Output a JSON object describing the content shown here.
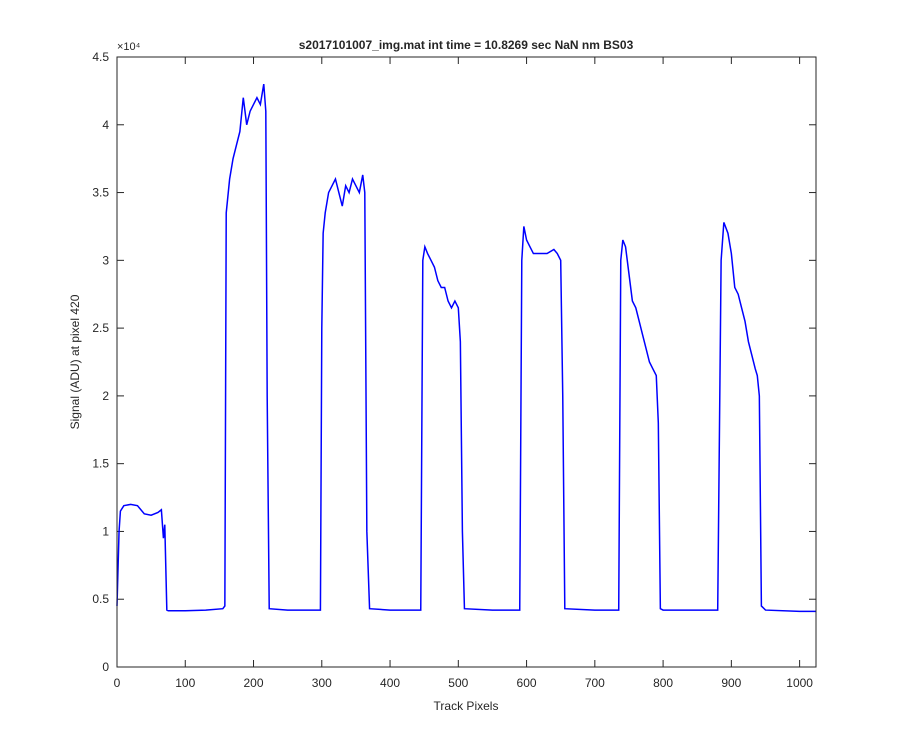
{
  "chart_data": {
    "type": "line",
    "title": "s2017101007_img.mat int time = 10.8269 sec  NaN nm BS03",
    "x_label": "Track Pixels",
    "y_label": "Signal (ADU) at pixel 420",
    "y_exponent_label": "×10⁴",
    "xlim": [
      0,
      1024
    ],
    "xticks": [
      0,
      100,
      200,
      300,
      400,
      500,
      600,
      700,
      800,
      900,
      1000
    ],
    "ylim": [
      0,
      4.5
    ],
    "yticks": [
      0,
      0.5,
      1,
      1.5,
      2,
      2.5,
      3,
      3.5,
      4,
      4.5
    ],
    "grid": false,
    "x": [
      0,
      3,
      5,
      10,
      20,
      30,
      40,
      50,
      60,
      65,
      68,
      70,
      73,
      75,
      100,
      130,
      155,
      158,
      160,
      165,
      170,
      175,
      180,
      185,
      190,
      195,
      200,
      205,
      210,
      215,
      218,
      220,
      223,
      250,
      298,
      300,
      302,
      305,
      310,
      315,
      320,
      325,
      330,
      335,
      340,
      345,
      350,
      355,
      360,
      363,
      366,
      370,
      400,
      445,
      448,
      451,
      455,
      460,
      465,
      470,
      475,
      480,
      485,
      490,
      495,
      500,
      503,
      506,
      509,
      550,
      590,
      593,
      596,
      600,
      605,
      610,
      620,
      630,
      640,
      645,
      650,
      653,
      656,
      700,
      735,
      738,
      741,
      745,
      750,
      755,
      760,
      765,
      770,
      775,
      780,
      785,
      790,
      793,
      796,
      800,
      840,
      880,
      885,
      889,
      895,
      900,
      905,
      910,
      915,
      920,
      925,
      930,
      935,
      938,
      941,
      944,
      950,
      1000,
      1024
    ],
    "series": [
      {
        "name": "signal",
        "color": "#0000ff",
        "values": [
          0.45,
          1.0,
          1.15,
          1.19,
          1.2,
          1.19,
          1.13,
          1.12,
          1.14,
          1.16,
          0.95,
          1.05,
          0.42,
          0.415,
          0.415,
          0.42,
          0.43,
          0.45,
          3.35,
          3.6,
          3.75,
          3.85,
          3.95,
          4.2,
          4.0,
          4.1,
          4.15,
          4.2,
          4.15,
          4.3,
          4.1,
          2.0,
          0.43,
          0.42,
          0.42,
          2.5,
          3.2,
          3.35,
          3.5,
          3.55,
          3.6,
          3.5,
          3.4,
          3.55,
          3.5,
          3.6,
          3.55,
          3.5,
          3.63,
          3.5,
          1.0,
          0.43,
          0.42,
          0.42,
          3.0,
          3.1,
          3.05,
          3.0,
          2.95,
          2.85,
          2.8,
          2.8,
          2.7,
          2.65,
          2.7,
          2.65,
          2.4,
          1.0,
          0.43,
          0.42,
          0.42,
          3.0,
          3.25,
          3.15,
          3.1,
          3.05,
          3.05,
          3.05,
          3.08,
          3.05,
          3.0,
          2.0,
          0.43,
          0.42,
          0.42,
          3.0,
          3.15,
          3.1,
          2.9,
          2.7,
          2.65,
          2.55,
          2.45,
          2.35,
          2.25,
          2.2,
          2.15,
          1.8,
          0.43,
          0.42,
          0.42,
          0.42,
          3.0,
          3.28,
          3.2,
          3.05,
          2.8,
          2.75,
          2.65,
          2.55,
          2.4,
          2.3,
          2.2,
          2.15,
          2.0,
          0.45,
          0.42,
          0.41,
          0.41
        ]
      }
    ]
  }
}
